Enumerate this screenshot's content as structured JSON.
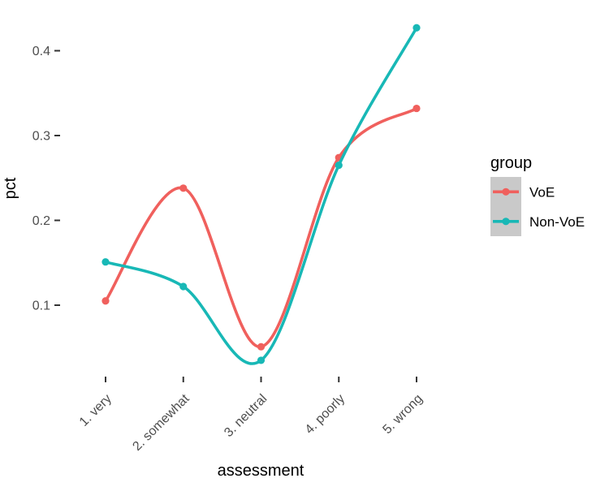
{
  "chart_data": {
    "type": "line",
    "title": "",
    "xlabel": "assessment",
    "ylabel": "pct",
    "categories": [
      "1. very",
      "2. somewhat",
      "3. neutral",
      "4. poorly",
      "5. wrong"
    ],
    "series": [
      {
        "name": "VoE",
        "color": "#F0605D",
        "values": [
          0.105,
          0.238,
          0.051,
          0.274,
          0.332
        ]
      },
      {
        "name": "Non-VoE",
        "color": "#18B8B6",
        "values": [
          0.151,
          0.122,
          0.035,
          0.265,
          0.427
        ]
      }
    ],
    "yticks": [
      {
        "value": 0.1,
        "label": "0.1"
      },
      {
        "value": 0.2,
        "label": "0.2"
      },
      {
        "value": 0.3,
        "label": "0.3"
      },
      {
        "value": 0.4,
        "label": "0.4"
      }
    ],
    "ylim": [
      0.02,
      0.45
    ],
    "grid": false,
    "smooth": true,
    "x_tick_angle": -45,
    "legend": {
      "title": "group",
      "position": "right",
      "key_fill": "#C9C9C9",
      "entries": [
        "VoE",
        "Non-VoE"
      ]
    },
    "axis": {
      "tick_color": "#333333",
      "label_color": "#4D4D4D",
      "title_color": "#000000"
    }
  }
}
